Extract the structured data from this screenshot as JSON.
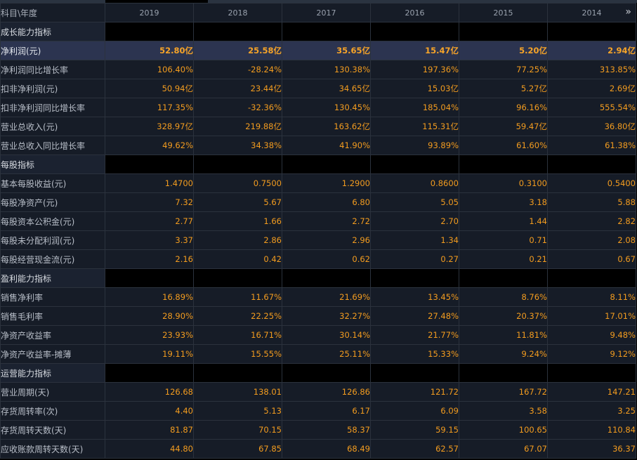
{
  "header": {
    "corner": "科目\\年度",
    "years": [
      "2019",
      "2018",
      "2017",
      "2016",
      "2015",
      "2014"
    ],
    "more_glyph": "»"
  },
  "rows": [
    {
      "type": "section",
      "label": "成长能力指标"
    },
    {
      "type": "data",
      "label": "净利润(元)",
      "values": [
        "52.80亿",
        "25.58亿",
        "35.65亿",
        "15.47亿",
        "5.20亿",
        "2.94亿"
      ],
      "highlight": true
    },
    {
      "type": "data",
      "label": "净利润同比增长率",
      "values": [
        "106.40%",
        "-28.24%",
        "130.38%",
        "197.36%",
        "77.25%",
        "313.85%"
      ]
    },
    {
      "type": "data",
      "label": "扣非净利润(元)",
      "values": [
        "50.94亿",
        "23.44亿",
        "34.65亿",
        "15.03亿",
        "5.27亿",
        "2.69亿"
      ]
    },
    {
      "type": "data",
      "label": "扣非净利润同比增长率",
      "values": [
        "117.35%",
        "-32.36%",
        "130.45%",
        "185.04%",
        "96.16%",
        "555.54%"
      ]
    },
    {
      "type": "data",
      "label": "营业总收入(元)",
      "values": [
        "328.97亿",
        "219.88亿",
        "163.62亿",
        "115.31亿",
        "59.47亿",
        "36.80亿"
      ]
    },
    {
      "type": "data",
      "label": "营业总收入同比增长率",
      "values": [
        "49.62%",
        "34.38%",
        "41.90%",
        "93.89%",
        "61.60%",
        "61.38%"
      ]
    },
    {
      "type": "section",
      "label": "每股指标"
    },
    {
      "type": "data",
      "label": "基本每股收益(元)",
      "values": [
        "1.4700",
        "0.7500",
        "1.2900",
        "0.8600",
        "0.3100",
        "0.5400"
      ]
    },
    {
      "type": "data",
      "label": "每股净资产(元)",
      "values": [
        "7.32",
        "5.67",
        "6.80",
        "5.05",
        "3.18",
        "5.88"
      ]
    },
    {
      "type": "data",
      "label": "每股资本公积金(元)",
      "values": [
        "2.77",
        "1.66",
        "2.72",
        "2.70",
        "1.44",
        "2.82"
      ]
    },
    {
      "type": "data",
      "label": "每股未分配利润(元)",
      "values": [
        "3.37",
        "2.86",
        "2.96",
        "1.34",
        "0.71",
        "2.08"
      ]
    },
    {
      "type": "data",
      "label": "每股经营现金流(元)",
      "values": [
        "2.16",
        "0.42",
        "0.62",
        "0.27",
        "0.21",
        "0.67"
      ]
    },
    {
      "type": "section",
      "label": "盈利能力指标"
    },
    {
      "type": "data",
      "label": "销售净利率",
      "values": [
        "16.89%",
        "11.67%",
        "21.69%",
        "13.45%",
        "8.76%",
        "8.11%"
      ]
    },
    {
      "type": "data",
      "label": "销售毛利率",
      "values": [
        "28.90%",
        "22.25%",
        "32.27%",
        "27.48%",
        "20.37%",
        "17.01%"
      ]
    },
    {
      "type": "data",
      "label": "净资产收益率",
      "values": [
        "23.93%",
        "16.71%",
        "30.14%",
        "21.77%",
        "11.81%",
        "9.48%"
      ]
    },
    {
      "type": "data",
      "label": "净资产收益率-摊薄",
      "values": [
        "19.11%",
        "15.55%",
        "25.11%",
        "15.33%",
        "9.24%",
        "9.12%"
      ]
    },
    {
      "type": "section",
      "label": "运营能力指标"
    },
    {
      "type": "data",
      "label": "营业周期(天)",
      "values": [
        "126.68",
        "138.01",
        "126.86",
        "121.72",
        "167.72",
        "147.21"
      ]
    },
    {
      "type": "data",
      "label": "存货周转率(次)",
      "values": [
        "4.40",
        "5.13",
        "6.17",
        "6.09",
        "3.58",
        "3.25"
      ]
    },
    {
      "type": "data",
      "label": "存货周转天数(天)",
      "values": [
        "81.87",
        "70.15",
        "58.37",
        "59.15",
        "100.65",
        "110.84"
      ]
    },
    {
      "type": "data",
      "label": "应收账款周转天数(天)",
      "values": [
        "44.80",
        "67.85",
        "68.49",
        "62.57",
        "67.07",
        "36.37"
      ]
    }
  ],
  "colors": {
    "background": "#000000",
    "cell_bg": "#161c27",
    "highlight_bg": "#2c3450",
    "value_text": "#f39c1f",
    "label_text": "#b8bec8",
    "border": "#2b323d"
  }
}
